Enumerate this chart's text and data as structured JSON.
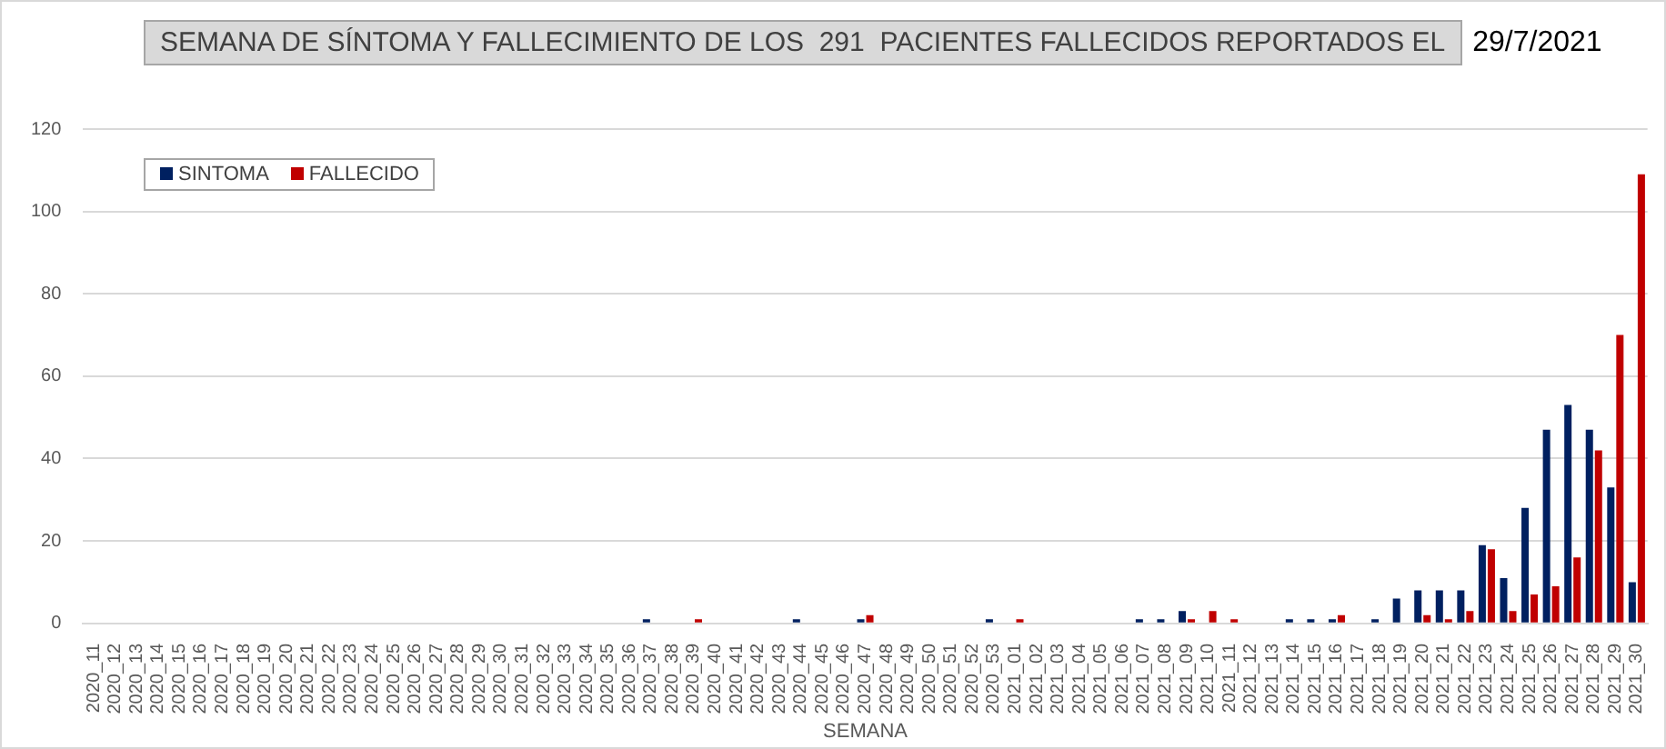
{
  "chart_data": {
    "type": "bar",
    "title": "SEMANA DE SÍNTOMA Y FALLECIMIENTO DE LOS  291  PACIENTES FALLECIDOS REPORTADOS EL",
    "subtitle": "29/7/2021",
    "xlabel": "SEMANA",
    "categories": [
      "2020_11",
      "2020_12",
      "2020_13",
      "2020_14",
      "2020_15",
      "2020_16",
      "2020_17",
      "2020_18",
      "2020_19",
      "2020_20",
      "2020_21",
      "2020_22",
      "2020_23",
      "2020_24",
      "2020_25",
      "2020_26",
      "2020_27",
      "2020_28",
      "2020_29",
      "2020_30",
      "2020_31",
      "2020_32",
      "2020_33",
      "2020_34",
      "2020_35",
      "2020_36",
      "2020_37",
      "2020_38",
      "2020_39",
      "2020_40",
      "2020_41",
      "2020_42",
      "2020_43",
      "2020_44",
      "2020_45",
      "2020_46",
      "2020_47",
      "2020_48",
      "2020_49",
      "2020_50",
      "2020_51",
      "2020_52",
      "2020_53",
      "2021_01",
      "2021_02",
      "2021_03",
      "2021_04",
      "2021_05",
      "2021_06",
      "2021_07",
      "2021_08",
      "2021_09",
      "2021_10",
      "2021_11",
      "2021_12",
      "2021_13",
      "2021_14",
      "2021_15",
      "2021_16",
      "2021_17",
      "2021_18",
      "2021_19",
      "2021_20",
      "2021_21",
      "2021_22",
      "2021_23",
      "2021_24",
      "2021_25",
      "2021_26",
      "2021_27",
      "2021_28",
      "2021_29",
      "2021_30"
    ],
    "series": [
      {
        "name": "SINTOMA",
        "color": "#002060",
        "values": [
          0,
          0,
          0,
          0,
          0,
          0,
          0,
          0,
          0,
          0,
          0,
          0,
          0,
          0,
          0,
          0,
          0,
          0,
          0,
          0,
          0,
          0,
          0,
          0,
          0,
          0,
          1,
          0,
          0,
          0,
          0,
          0,
          0,
          1,
          0,
          0,
          1,
          0,
          0,
          0,
          0,
          0,
          1,
          0,
          0,
          0,
          0,
          0,
          0,
          1,
          1,
          3,
          0,
          0,
          0,
          0,
          1,
          1,
          1,
          0,
          1,
          6,
          8,
          8,
          8,
          19,
          11,
          28,
          47,
          53,
          47,
          33,
          10
        ]
      },
      {
        "name": "FALLECIDO",
        "color": "#c00000",
        "values": [
          0,
          0,
          0,
          0,
          0,
          0,
          0,
          0,
          0,
          0,
          0,
          0,
          0,
          0,
          0,
          0,
          0,
          0,
          0,
          0,
          0,
          0,
          0,
          0,
          0,
          0,
          0,
          0,
          1,
          0,
          0,
          0,
          0,
          0,
          0,
          0,
          2,
          0,
          0,
          0,
          0,
          0,
          0,
          1,
          0,
          0,
          0,
          0,
          0,
          0,
          0,
          1,
          3,
          1,
          0,
          0,
          0,
          0,
          2,
          0,
          0,
          0,
          2,
          1,
          3,
          18,
          3,
          7,
          9,
          16,
          42,
          70,
          109
        ]
      }
    ],
    "ylim": [
      0,
      120
    ],
    "yticks": [
      0,
      20,
      40,
      60,
      80,
      100,
      120
    ],
    "grid": "y",
    "legend": "top left"
  }
}
